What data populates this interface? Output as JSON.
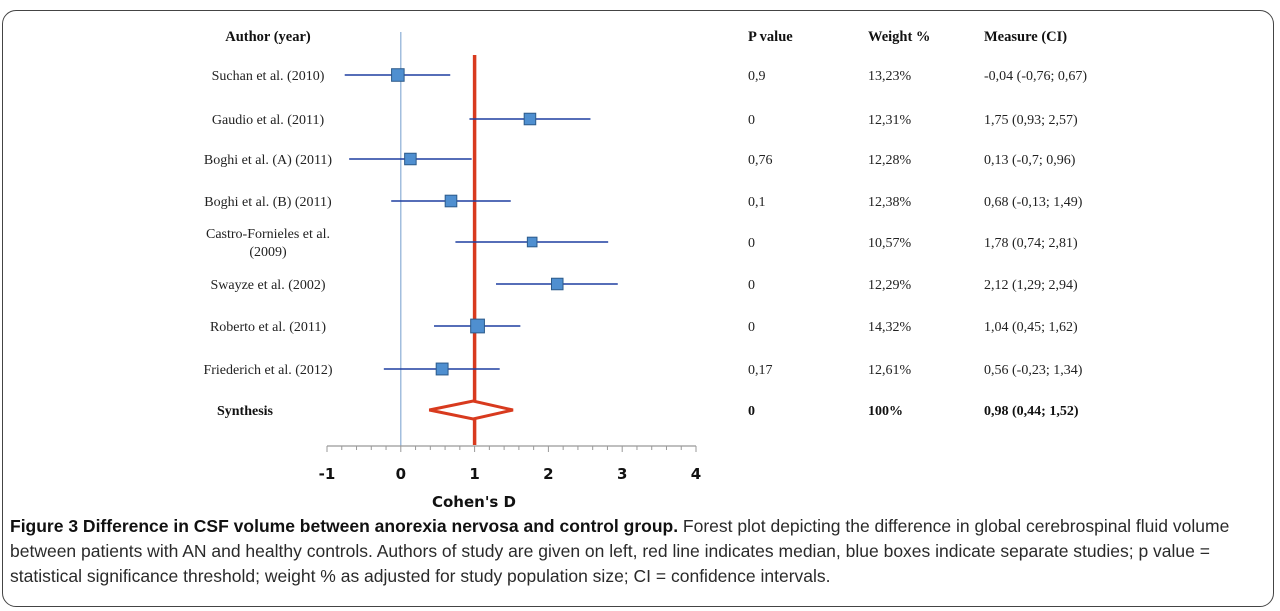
{
  "headers": {
    "author": "Author (year)",
    "pvalue": "P value",
    "weight": "Weight %",
    "measure": "Measure (CI)"
  },
  "chart_data": {
    "type": "forest",
    "xlabel": "Cohen's D",
    "xlim": [
      -1,
      4
    ],
    "x_ticks": [
      "-1",
      "0",
      "1",
      "2",
      "3",
      "4"
    ],
    "reference_line": 0,
    "median_line": 1,
    "studies": [
      {
        "author": [
          "Suchan et al. (2010)"
        ],
        "estimate": -0.04,
        "ci": [
          -0.76,
          0.67
        ],
        "pvalue": "0,9",
        "weight": "13,23%",
        "measure": "-0,04 (-0,76; 0,67)"
      },
      {
        "author": [
          "Gaudio et al. (2011)"
        ],
        "estimate": 1.75,
        "ci": [
          0.93,
          2.57
        ],
        "pvalue": "0",
        "weight": "12,31%",
        "measure": "1,75 (0,93; 2,57)"
      },
      {
        "author": [
          "Boghi et al. (A) (2011)"
        ],
        "estimate": 0.13,
        "ci": [
          -0.7,
          0.96
        ],
        "pvalue": "0,76",
        "weight": "12,28%",
        "measure": "0,13 (-0,7; 0,96)"
      },
      {
        "author": [
          "Boghi et al. (B) (2011)"
        ],
        "estimate": 0.68,
        "ci": [
          -0.13,
          1.49
        ],
        "pvalue": "0,1",
        "weight": "12,38%",
        "measure": "0,68 (-0,13; 1,49)"
      },
      {
        "author": [
          "Castro-Fornieles et al.",
          "(2009)"
        ],
        "estimate": 1.78,
        "ci": [
          0.74,
          2.81
        ],
        "pvalue": "0",
        "weight": "10,57%",
        "measure": "1,78 (0,74; 2,81)"
      },
      {
        "author": [
          "Swayze et al. (2002)"
        ],
        "estimate": 2.12,
        "ci": [
          1.29,
          2.94
        ],
        "pvalue": "0",
        "weight": "12,29%",
        "measure": "2,12 (1,29; 2,94)"
      },
      {
        "author": [
          "Roberto et al. (2011)"
        ],
        "estimate": 1.04,
        "ci": [
          0.45,
          1.62
        ],
        "pvalue": "0",
        "weight": "14,32%",
        "measure": "1,04 (0,45; 1,62)"
      },
      {
        "author": [
          "Friederich et al. (2012)"
        ],
        "estimate": 0.56,
        "ci": [
          -0.23,
          1.34
        ],
        "pvalue": "0,17",
        "weight": "12,61%",
        "measure": "0,56 (-0,23; 1,34)"
      }
    ],
    "synthesis": {
      "author": "Synthesis",
      "estimate": 0.98,
      "ci": [
        0.44,
        1.52
      ],
      "pvalue": "0",
      "weight": "100%",
      "measure": "0,98 (0,44; 1,52)"
    },
    "colors": {
      "box": "#4f8fd0",
      "ci_line": "#1f3fa0",
      "median_line": "#d83a1e",
      "diamond": "#d83a1e",
      "zero_line": "#8aaed6"
    }
  },
  "caption": {
    "title": "Figure 3 Difference in CSF volume between anorexia nervosa and control group.",
    "text": " Forest plot depicting the difference in global cerebrospinal fluid volume between patients with AN and healthy controls. Authors of study are given on left, red line indicates median, blue boxes indicate separate studies; p value = statistical significance threshold; weight % as adjusted for study population size; CI = confidence intervals."
  }
}
